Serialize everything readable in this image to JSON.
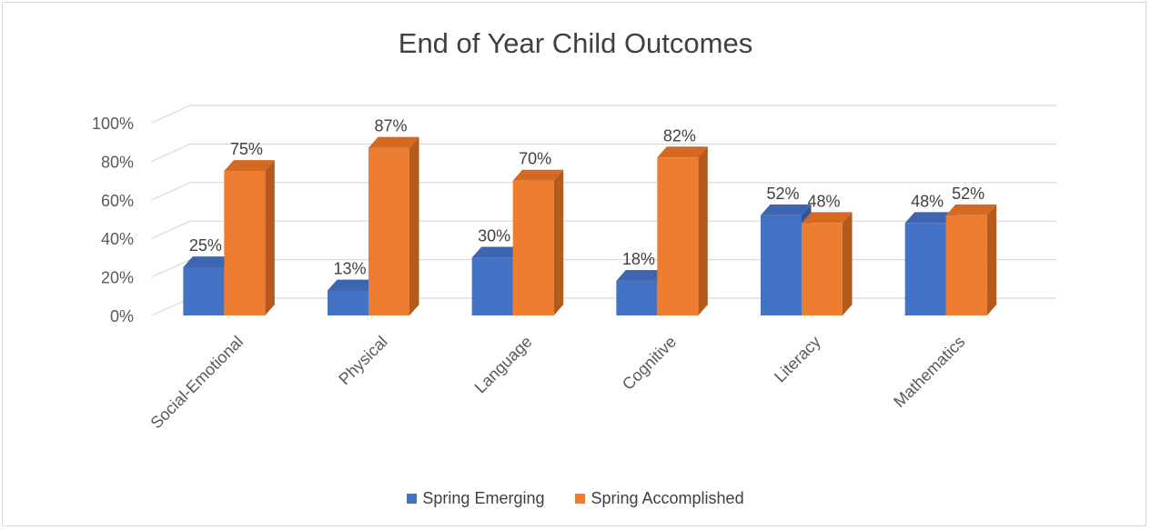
{
  "chart_data": {
    "type": "bar",
    "style": "3d-clustered-column",
    "title": "End of Year Child Outcomes",
    "categories": [
      "Social-Emotional",
      "Physical",
      "Language",
      "Cognitive",
      "Literacy",
      "Mathematics"
    ],
    "series": [
      {
        "name": "Spring Emerging",
        "values": [
          25,
          13,
          30,
          18,
          52,
          48
        ],
        "labels": [
          "25%",
          "13%",
          "30%",
          "18%",
          "52%",
          "48%"
        ],
        "color": "#4472c4"
      },
      {
        "name": "Spring Accomplished",
        "values": [
          75,
          87,
          70,
          82,
          48,
          52
        ],
        "labels": [
          "75%",
          "87%",
          "70%",
          "82%",
          "48%",
          "52%"
        ],
        "color": "#ed7d31"
      }
    ],
    "ylim": [
      0,
      100
    ],
    "yticks": [
      "0%",
      "20%",
      "40%",
      "60%",
      "80%",
      "100%"
    ],
    "y_unit": "%",
    "grid": true,
    "legend_position": "bottom"
  }
}
